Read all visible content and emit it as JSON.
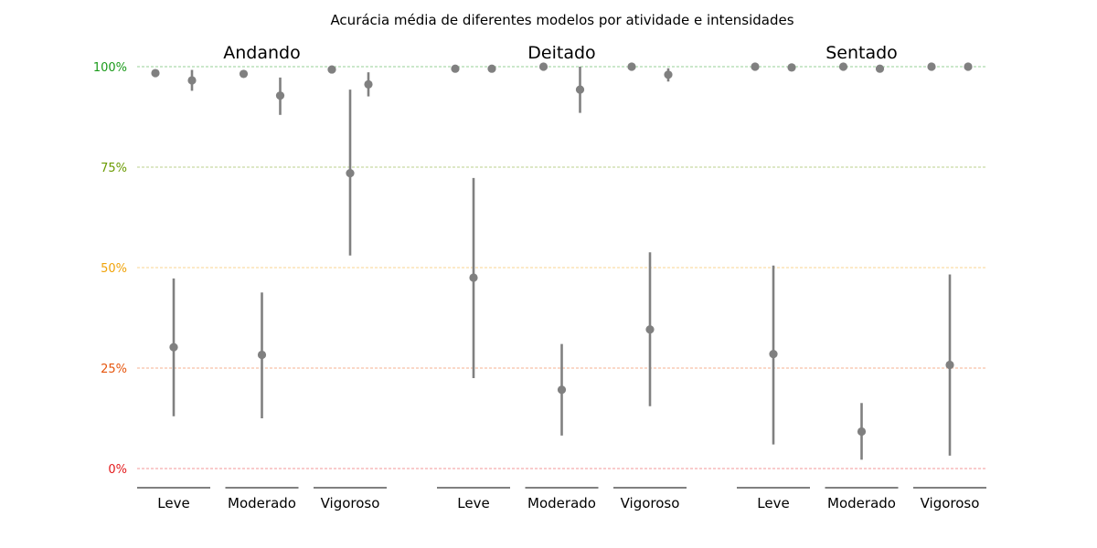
{
  "chart_data": {
    "type": "scatter",
    "title": "Acurácia média de diferentes modelos por atividade e intensidades",
    "xlabel": "",
    "ylabel": "",
    "ylim": [
      0,
      100
    ],
    "yticks": [
      {
        "value": 0,
        "label": "0%",
        "color": "#e31a1c"
      },
      {
        "value": 25,
        "label": "25%",
        "color": "#e6550d"
      },
      {
        "value": 50,
        "label": "50%",
        "color": "#f0a30a"
      },
      {
        "value": 75,
        "label": "75%",
        "color": "#6a9a00"
      },
      {
        "value": 100,
        "label": "100%",
        "color": "#1a9a1a"
      }
    ],
    "grid": true,
    "marker_color": "#808080",
    "groups": [
      {
        "name": "Andando",
        "categories": [
          {
            "label": "Leve",
            "points": [
              {
                "mean": 98.4,
                "low": 97.8,
                "high": 99.0
              },
              {
                "mean": 30.2,
                "low": 13.0,
                "high": 47.3
              },
              {
                "mean": 96.6,
                "low": 94.0,
                "high": 99.2
              }
            ]
          },
          {
            "label": "Moderado",
            "points": [
              {
                "mean": 98.2,
                "low": 97.3,
                "high": 99.0
              },
              {
                "mean": 28.3,
                "low": 12.5,
                "high": 43.8
              },
              {
                "mean": 92.8,
                "low": 88.0,
                "high": 97.3
              }
            ]
          },
          {
            "label": "Vigoroso",
            "points": [
              {
                "mean": 99.3,
                "low": 99.0,
                "high": 99.6
              },
              {
                "mean": 73.5,
                "low": 53.0,
                "high": 94.3
              },
              {
                "mean": 95.6,
                "low": 92.6,
                "high": 98.6
              }
            ]
          }
        ]
      },
      {
        "name": "Deitado",
        "categories": [
          {
            "label": "Leve",
            "points": [
              {
                "mean": 99.5,
                "low": 99.2,
                "high": 99.8
              },
              {
                "mean": 47.5,
                "low": 22.5,
                "high": 72.3
              },
              {
                "mean": 99.5,
                "low": 99.2,
                "high": 99.8
              }
            ]
          },
          {
            "label": "Moderado",
            "points": [
              {
                "mean": 100,
                "low": 100,
                "high": 100
              },
              {
                "mean": 19.6,
                "low": 8.2,
                "high": 31.0
              },
              {
                "mean": 94.3,
                "low": 88.5,
                "high": 100
              }
            ]
          },
          {
            "label": "Vigoroso",
            "points": [
              {
                "mean": 100,
                "low": 100,
                "high": 100
              },
              {
                "mean": 34.6,
                "low": 15.5,
                "high": 53.8
              },
              {
                "mean": 98.0,
                "low": 96.3,
                "high": 99.6
              }
            ]
          }
        ]
      },
      {
        "name": "Sentado",
        "categories": [
          {
            "label": "Leve",
            "points": [
              {
                "mean": 100,
                "low": 100,
                "high": 100
              },
              {
                "mean": 28.5,
                "low": 6.0,
                "high": 50.5
              },
              {
                "mean": 99.8,
                "low": 99.5,
                "high": 100
              }
            ]
          },
          {
            "label": "Moderado",
            "points": [
              {
                "mean": 100,
                "low": 100,
                "high": 100
              },
              {
                "mean": 9.2,
                "low": 2.2,
                "high": 16.3
              },
              {
                "mean": 99.5,
                "low": 99.2,
                "high": 99.8
              }
            ]
          },
          {
            "label": "Vigoroso",
            "points": [
              {
                "mean": 100,
                "low": 100,
                "high": 100
              },
              {
                "mean": 25.8,
                "low": 3.2,
                "high": 48.3
              },
              {
                "mean": 100,
                "low": 100,
                "high": 100
              }
            ]
          }
        ]
      }
    ]
  }
}
